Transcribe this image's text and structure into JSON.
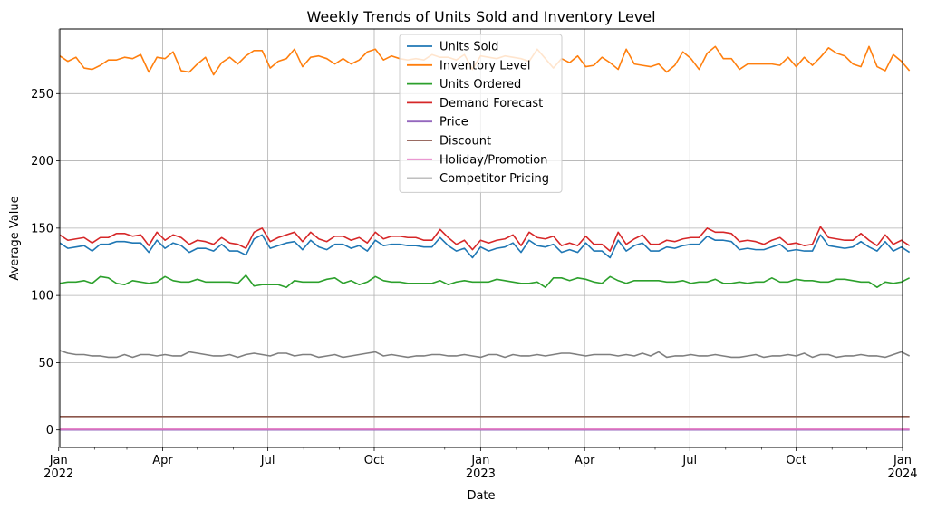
{
  "chart_data": {
    "type": "line",
    "title": "Weekly Trends of Units Sold and Inventory Level",
    "xlabel": "Date",
    "ylabel": "Average Value",
    "x_start": "2022-01-02",
    "x_end": "2024-01-01",
    "frequency": "weekly",
    "ylim": [
      -13,
      298
    ],
    "yticks": [
      0,
      50,
      100,
      150,
      200,
      250
    ],
    "xticks": [
      {
        "date": "2022-01-01",
        "label": "Jan",
        "sublabel": "2022"
      },
      {
        "date": "2022-04-01",
        "label": "Apr",
        "sublabel": ""
      },
      {
        "date": "2022-07-01",
        "label": "Jul",
        "sublabel": ""
      },
      {
        "date": "2022-10-01",
        "label": "Oct",
        "sublabel": ""
      },
      {
        "date": "2023-01-01",
        "label": "Jan",
        "sublabel": "2023"
      },
      {
        "date": "2023-04-01",
        "label": "Apr",
        "sublabel": ""
      },
      {
        "date": "2023-07-01",
        "label": "Jul",
        "sublabel": ""
      },
      {
        "date": "2023-10-01",
        "label": "Oct",
        "sublabel": ""
      },
      {
        "date": "2024-01-01",
        "label": "Jan",
        "sublabel": "2024"
      }
    ],
    "grid": true,
    "legend_position": "upper-center",
    "series": [
      {
        "name": "Units Sold",
        "color": "#1f77b4",
        "values": [
          139,
          135,
          136,
          137,
          133,
          138,
          138,
          140,
          140,
          139,
          139,
          132,
          141,
          135,
          139,
          137,
          132,
          135,
          135,
          133,
          138,
          133,
          133,
          130,
          142,
          145,
          135,
          137,
          139,
          140,
          134,
          141,
          136,
          134,
          138,
          138,
          135,
          137,
          133,
          141,
          137,
          138,
          138,
          137,
          137,
          136,
          136,
          143,
          137,
          133,
          135,
          128,
          136,
          133,
          135,
          136,
          139,
          132,
          141,
          137,
          136,
          138,
          132,
          134,
          132,
          139,
          133,
          133,
          128,
          141,
          133,
          137,
          139,
          133,
          133,
          136,
          135,
          137,
          138,
          138,
          144,
          141,
          141,
          140,
          134,
          135,
          134,
          134,
          136,
          138,
          133,
          134,
          133,
          133,
          145,
          137,
          136,
          135,
          136,
          140,
          136,
          133,
          140,
          133,
          136,
          132
        ]
      },
      {
        "name": "Inventory Level",
        "color": "#ff7f0e",
        "values": [
          278,
          274,
          277,
          269,
          268,
          271,
          275,
          275,
          277,
          276,
          279,
          266,
          277,
          276,
          281,
          267,
          266,
          272,
          277,
          264,
          273,
          277,
          272,
          278,
          282,
          282,
          269,
          274,
          276,
          283,
          270,
          277,
          278,
          276,
          272,
          276,
          272,
          275,
          281,
          283,
          275,
          278,
          276,
          275,
          276,
          275,
          279,
          277,
          277,
          275,
          279,
          268,
          278,
          277,
          276,
          278,
          277,
          276,
          274,
          283,
          276,
          269,
          276,
          273,
          278,
          270,
          271,
          277,
          273,
          268,
          283,
          272,
          271,
          270,
          272,
          266,
          271,
          281,
          276,
          268,
          280,
          285,
          276,
          276,
          268,
          272,
          272,
          272,
          272,
          271,
          277,
          270,
          277,
          271,
          277,
          284,
          280,
          278,
          272,
          270,
          285,
          270,
          267,
          279,
          274,
          267
        ]
      },
      {
        "name": "Units Ordered",
        "color": "#2ca02c",
        "values": [
          109,
          110,
          110,
          111,
          109,
          114,
          113,
          109,
          108,
          111,
          110,
          109,
          110,
          114,
          111,
          110,
          110,
          112,
          110,
          110,
          110,
          110,
          109,
          115,
          107,
          108,
          108,
          108,
          106,
          111,
          110,
          110,
          110,
          112,
          113,
          109,
          111,
          108,
          110,
          114,
          111,
          110,
          110,
          109,
          109,
          109,
          109,
          111,
          108,
          110,
          111,
          110,
          110,
          110,
          112,
          111,
          110,
          109,
          109,
          110,
          106,
          113,
          113,
          111,
          113,
          112,
          110,
          109,
          114,
          111,
          109,
          111,
          111,
          111,
          111,
          110,
          110,
          111,
          109,
          110,
          110,
          112,
          109,
          109,
          110,
          109,
          110,
          110,
          113,
          110,
          110,
          112,
          111,
          111,
          110,
          110,
          112,
          112,
          111,
          110,
          110,
          106,
          110,
          109,
          110,
          113
        ]
      },
      {
        "name": "Demand Forecast",
        "color": "#d62728",
        "values": [
          145,
          141,
          142,
          143,
          139,
          143,
          143,
          146,
          146,
          144,
          145,
          137,
          147,
          141,
          145,
          143,
          138,
          141,
          140,
          138,
          143,
          139,
          138,
          135,
          147,
          150,
          140,
          143,
          145,
          147,
          140,
          147,
          142,
          140,
          144,
          144,
          141,
          143,
          139,
          147,
          142,
          144,
          144,
          143,
          143,
          141,
          141,
          149,
          143,
          138,
          141,
          134,
          141,
          139,
          141,
          142,
          145,
          137,
          147,
          143,
          142,
          144,
          137,
          139,
          137,
          144,
          138,
          138,
          133,
          147,
          138,
          142,
          145,
          138,
          138,
          141,
          140,
          142,
          143,
          143,
          150,
          147,
          147,
          146,
          140,
          141,
          140,
          138,
          141,
          143,
          138,
          139,
          137,
          138,
          151,
          143,
          142,
          141,
          141,
          146,
          141,
          137,
          145,
          138,
          141,
          137
        ]
      },
      {
        "name": "Price",
        "color": "#9467bd",
        "values": [
          0,
          0,
          0,
          0,
          0,
          0,
          0,
          0,
          0,
          0,
          0,
          0,
          0,
          0,
          0,
          0,
          0,
          0,
          0,
          0,
          0,
          0,
          0,
          0,
          0,
          0,
          0,
          0,
          0,
          0,
          0,
          0,
          0,
          0,
          0,
          0,
          0,
          0,
          0,
          0,
          0,
          0,
          0,
          0,
          0,
          0,
          0,
          0,
          0,
          0,
          0,
          0,
          0,
          0,
          0,
          0,
          0,
          0,
          0,
          0,
          0,
          0,
          0,
          0,
          0,
          0,
          0,
          0,
          0,
          0,
          0,
          0,
          0,
          0,
          0,
          0,
          0,
          0,
          0,
          0,
          0,
          0,
          0,
          0,
          0,
          0,
          0,
          0,
          0,
          0,
          0,
          0,
          0,
          0,
          0,
          0,
          0,
          0,
          0,
          0,
          0,
          0,
          0,
          0,
          0,
          0
        ]
      },
      {
        "name": "Discount",
        "color": "#8c564b",
        "values": [
          10,
          10,
          10,
          10,
          10,
          10,
          10,
          10,
          10,
          10,
          10,
          10,
          10,
          10,
          10,
          10,
          10,
          10,
          10,
          10,
          10,
          10,
          10,
          10,
          10,
          10,
          10,
          10,
          10,
          10,
          10,
          10,
          10,
          10,
          10,
          10,
          10,
          10,
          10,
          10,
          10,
          10,
          10,
          10,
          10,
          10,
          10,
          10,
          10,
          10,
          10,
          10,
          10,
          10,
          10,
          10,
          10,
          10,
          10,
          10,
          10,
          10,
          10,
          10,
          10,
          10,
          10,
          10,
          10,
          10,
          10,
          10,
          10,
          10,
          10,
          10,
          10,
          10,
          10,
          10,
          10,
          10,
          10,
          10,
          10,
          10,
          10,
          10,
          10,
          10,
          10,
          10,
          10,
          10,
          10,
          10,
          10,
          10,
          10,
          10,
          10,
          10,
          10,
          10,
          10,
          10
        ]
      },
      {
        "name": "Holiday/Promotion",
        "color": "#e377c2",
        "values": [
          0.5,
          0.5,
          0.5,
          0.5,
          0.5,
          0.5,
          0.5,
          0.5,
          0.5,
          0.5,
          0.5,
          0.5,
          0.5,
          0.5,
          0.5,
          0.5,
          0.5,
          0.5,
          0.5,
          0.5,
          0.5,
          0.5,
          0.5,
          0.5,
          0.5,
          0.5,
          0.5,
          0.5,
          0.5,
          0.5,
          0.5,
          0.5,
          0.5,
          0.5,
          0.5,
          0.5,
          0.5,
          0.5,
          0.5,
          0.5,
          0.5,
          0.5,
          0.5,
          0.5,
          0.5,
          0.5,
          0.5,
          0.5,
          0.5,
          0.5,
          0.5,
          0.5,
          0.5,
          0.5,
          0.5,
          0.5,
          0.5,
          0.5,
          0.5,
          0.5,
          0.5,
          0.5,
          0.5,
          0.5,
          0.5,
          0.5,
          0.5,
          0.5,
          0.5,
          0.5,
          0.5,
          0.5,
          0.5,
          0.5,
          0.5,
          0.5,
          0.5,
          0.5,
          0.5,
          0.5,
          0.5,
          0.5,
          0.5,
          0.5,
          0.5,
          0.5,
          0.5,
          0.5,
          0.5,
          0.5,
          0.5,
          0.5,
          0.5,
          0.5,
          0.5,
          0.5,
          0.5,
          0.5,
          0.5,
          0.5,
          0.5,
          0.5,
          0.5,
          0.5,
          0.5,
          0.5
        ]
      },
      {
        "name": "Competitor Pricing",
        "color": "#7f7f7f",
        "values": [
          59,
          57,
          56,
          56,
          55,
          55,
          54,
          54,
          56,
          54,
          56,
          56,
          55,
          56,
          55,
          55,
          58,
          57,
          56,
          55,
          55,
          56,
          54,
          56,
          57,
          56,
          55,
          57,
          57,
          55,
          56,
          56,
          54,
          55,
          56,
          54,
          55,
          56,
          57,
          58,
          55,
          56,
          55,
          54,
          55,
          55,
          56,
          56,
          55,
          55,
          56,
          55,
          54,
          56,
          56,
          54,
          56,
          55,
          55,
          56,
          55,
          56,
          57,
          57,
          56,
          55,
          56,
          56,
          56,
          55,
          56,
          55,
          57,
          55,
          58,
          54,
          55,
          55,
          56,
          55,
          55,
          56,
          55,
          54,
          54,
          55,
          56,
          54,
          55,
          55,
          56,
          55,
          57,
          54,
          56,
          56,
          54,
          55,
          55,
          56,
          55,
          55,
          54,
          56,
          58,
          55
        ]
      }
    ]
  }
}
